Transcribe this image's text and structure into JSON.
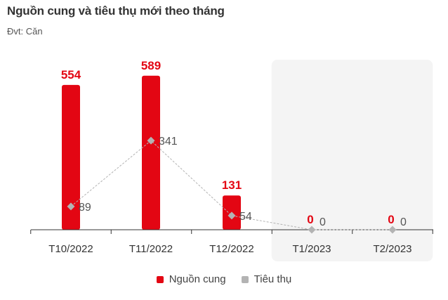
{
  "title": "Nguồn cung và tiêu thụ mới theo tháng",
  "subtitle": "Đvt: Căn",
  "chart_data": {
    "type": "bar",
    "categories": [
      "T10/2022",
      "T11/2022",
      "T12/2022",
      "T1/2023",
      "T2/2023"
    ],
    "series": [
      {
        "name": "Nguồn cung",
        "type": "bar",
        "color": "#e30613",
        "values": [
          554,
          589,
          131,
          0,
          0
        ]
      },
      {
        "name": "Tiêu thụ",
        "type": "line",
        "color": "#b3b3b3",
        "values": [
          89,
          341,
          54,
          0,
          0
        ]
      }
    ],
    "highlight_categories": [
      "T1/2023",
      "T2/2023"
    ],
    "ylim": [
      0,
      600
    ],
    "grid": false,
    "legend_position": "bottom-center"
  }
}
